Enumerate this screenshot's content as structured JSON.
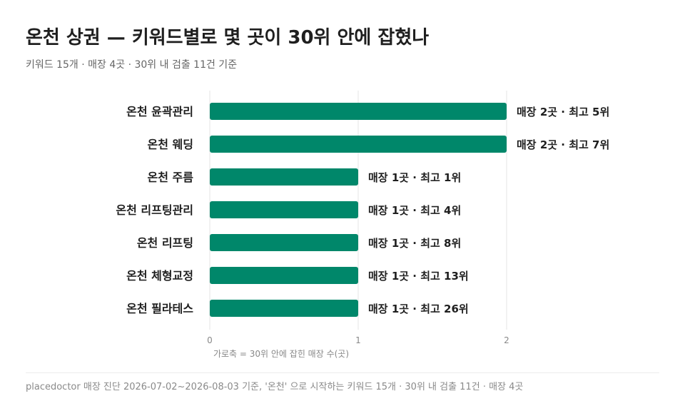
{
  "header": {
    "title": "온천 상권 — 키워드별로 몇 곳이 30위 안에 잡혔나",
    "subtitle": "키워드 15개 · 매장 4곳 · 30위 내 검출 11건 기준"
  },
  "footer": {
    "note": "placedoctor 매장 진단 2026-07-02~2026-08-03 기준, '온천' 으로 시작하는 키워드 15개 · 30위 내 검출 11건 · 매장 4곳"
  },
  "colors": {
    "bar": "#00876a",
    "grid": "#e6e6e6",
    "label": "#1f1f1f",
    "tick": "#888888"
  },
  "chart_data": {
    "type": "bar",
    "orientation": "horizontal",
    "categories": [
      "온천 윤곽관리",
      "온천 웨딩",
      "온천 주름",
      "온천 리프팅관리",
      "온천 리프팅",
      "온천 체형교정",
      "온천 필라테스"
    ],
    "values": [
      2,
      2,
      1,
      1,
      1,
      1,
      1
    ],
    "data_labels": [
      "매장 2곳 · 최고 5위",
      "매장 2곳 · 최고 7위",
      "매장 1곳 · 최고 1위",
      "매장 1곳 · 최고 4위",
      "매장 1곳 · 최고 8위",
      "매장 1곳 · 최고 13위",
      "매장 1곳 · 최고 26위"
    ],
    "xlabel": "가로축 = 30위 안에 잡힌 매장 수(곳)",
    "xlim": [
      0,
      2
    ],
    "xticks": [
      "0",
      "1",
      "2"
    ],
    "grid": true
  }
}
